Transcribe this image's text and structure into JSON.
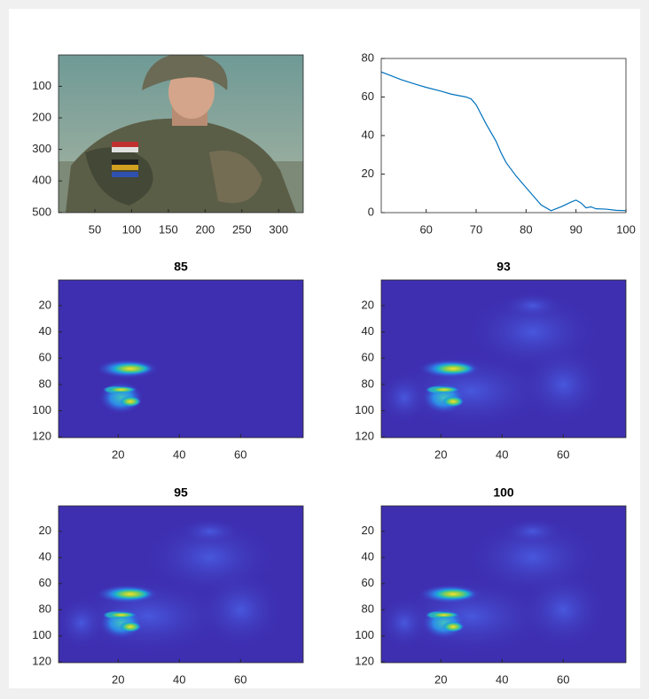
{
  "chart_data": [
    {
      "type": "image",
      "xlim": [
        0.5,
        333.5
      ],
      "ylim": [
        0.5,
        500.5
      ],
      "xticks": [
        50,
        100,
        150,
        200,
        250,
        300
      ],
      "yticks": [
        100,
        200,
        300,
        400,
        500
      ]
    },
    {
      "type": "line",
      "x": [
        51,
        53,
        55,
        58,
        60,
        63,
        65,
        68,
        69,
        70,
        71,
        72,
        74,
        75,
        76,
        78,
        80,
        82,
        83,
        85,
        87,
        89,
        90,
        91,
        92,
        93,
        94,
        96,
        98,
        100
      ],
      "series": [
        {
          "color": "#0072bd",
          "values": [
            73,
            71,
            69,
            66.5,
            65,
            63,
            61.5,
            60,
            59,
            56,
            51,
            46,
            37,
            31,
            26,
            19,
            13,
            7,
            4,
            1,
            3,
            5.5,
            6.5,
            5,
            2.5,
            3,
            2,
            1.8,
            1.2,
            1
          ]
        }
      ],
      "xlim": [
        51,
        100
      ],
      "ylim": [
        0,
        80
      ],
      "xticks": [
        60,
        70,
        80,
        90,
        100
      ],
      "yticks": [
        0,
        20,
        40,
        60,
        80
      ]
    },
    {
      "type": "heatmap",
      "title": "85",
      "xlim": [
        0.5,
        80.5
      ],
      "ylim": [
        0.5,
        120.5
      ],
      "xticks": [
        20,
        40,
        60
      ],
      "yticks": [
        20,
        40,
        60,
        80,
        100,
        120
      ]
    },
    {
      "type": "heatmap",
      "title": "93",
      "xlim": [
        0.5,
        80.5
      ],
      "ylim": [
        0.5,
        120.5
      ],
      "xticks": [
        20,
        40,
        60
      ],
      "yticks": [
        20,
        40,
        60,
        80,
        100,
        120
      ]
    },
    {
      "type": "heatmap",
      "title": "95",
      "xlim": [
        0.5,
        80.5
      ],
      "ylim": [
        0.5,
        120.5
      ],
      "xticks": [
        20,
        40,
        60
      ],
      "yticks": [
        20,
        40,
        60,
        80,
        100,
        120
      ]
    },
    {
      "type": "heatmap",
      "title": "100",
      "xlim": [
        0.5,
        80.5
      ],
      "ylim": [
        0.5,
        120.5
      ],
      "xticks": [
        20,
        40,
        60
      ],
      "yticks": [
        20,
        40,
        60,
        80,
        100,
        120
      ]
    }
  ]
}
